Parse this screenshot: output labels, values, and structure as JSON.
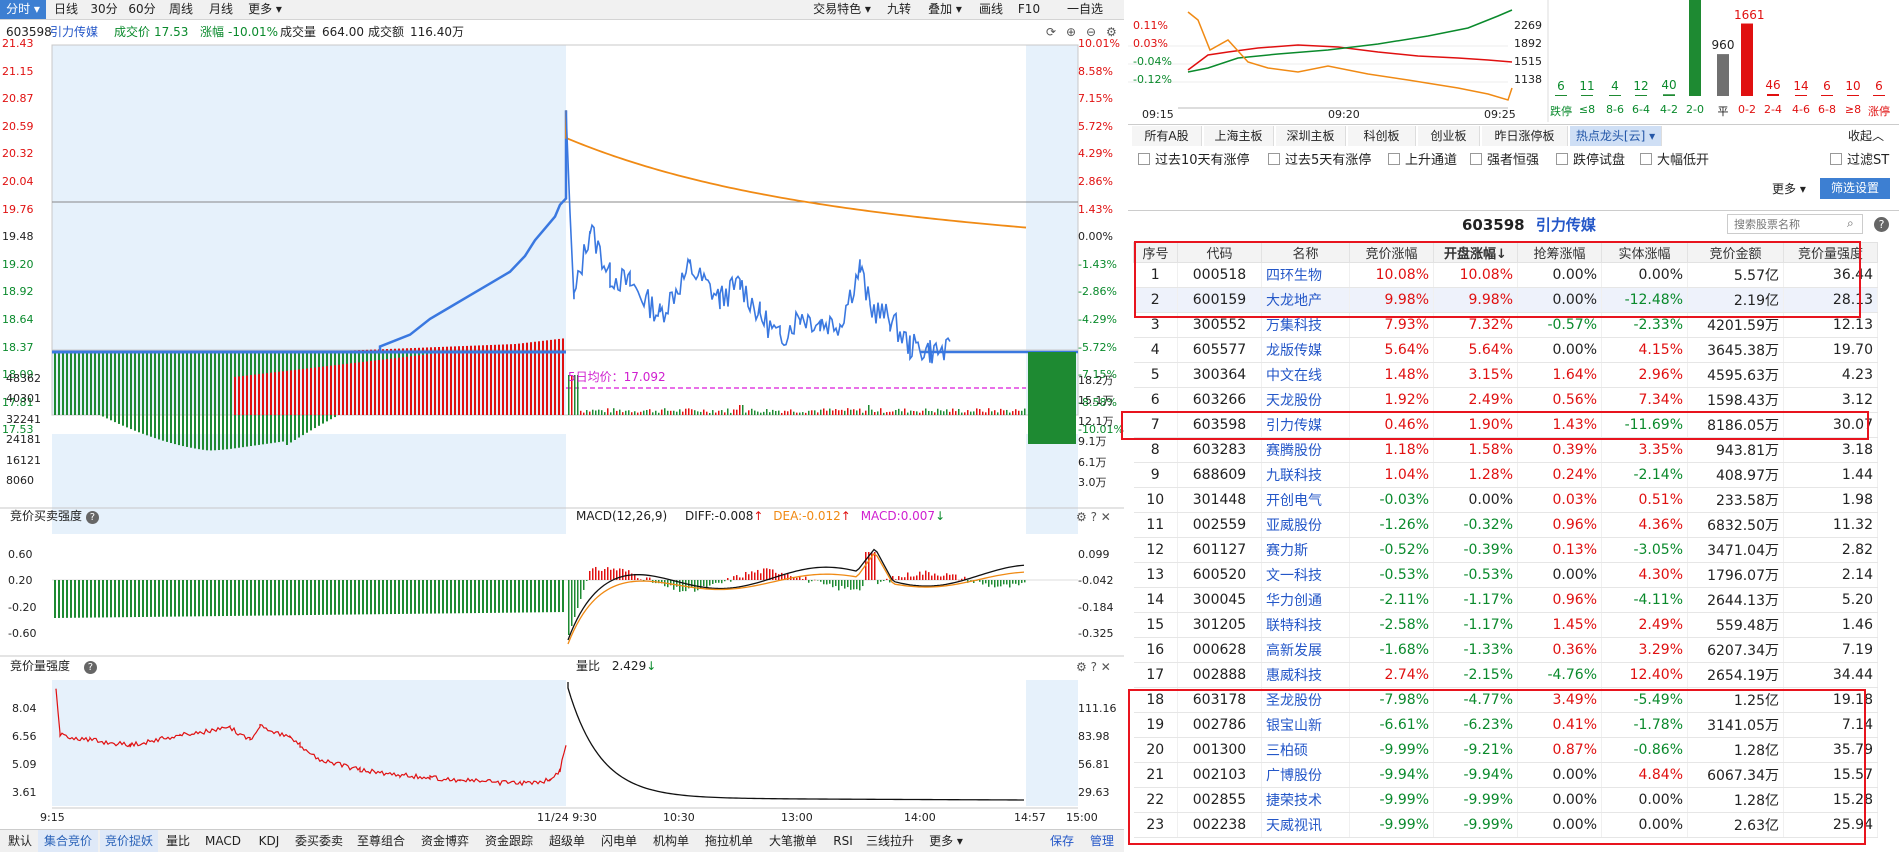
{
  "toolbar": {
    "tabs": [
      "分时",
      "日线",
      "30分",
      "60分",
      "周线",
      "月线",
      "更多"
    ],
    "right_items": [
      "交易特色",
      "九转",
      "叠加",
      "画线",
      "F10",
      "一自选"
    ]
  },
  "quote": {
    "code": "603598",
    "name": "引力传媒",
    "price_label": "成交价",
    "price": "17.53",
    "change_label": "涨幅",
    "change": "-10.01%",
    "volume_label": "成交量",
    "volume": "664.00",
    "amount_label": "成交额",
    "amount": "116.40万"
  },
  "main_chart": {
    "left_ticks": [
      "21.43",
      "21.15",
      "20.87",
      "20.59",
      "20.32",
      "20.04",
      "19.76",
      "19.48",
      "19.20",
      "18.92",
      "18.64",
      "18.37",
      "18.09",
      "17.81",
      "17.53"
    ],
    "right_ticks": [
      "10.01%",
      "8.58%",
      "7.15%",
      "5.72%",
      "4.29%",
      "2.86%",
      "1.43%",
      "0.00%",
      "-1.43%",
      "-2.86%",
      "-4.29%",
      "-5.72%",
      "-7.15%",
      "-8.58%",
      "-10.01%"
    ],
    "ma5_label": "5日均价：17.092",
    "vol_left_ticks": [
      "48362",
      "40301",
      "32241",
      "24181",
      "16121",
      "8060"
    ],
    "vol_right_ticks": [
      "18.2万",
      "15.1万",
      "12.1万",
      "9.1万",
      "6.1万",
      "3.0万"
    ]
  },
  "panel2": {
    "title": "竞价买卖强度",
    "macd_label": "MACD(12,26,9)",
    "diff": "DIFF:-0.008",
    "dea": "DEA:-0.012",
    "macd": "MACD:0.007",
    "left_ticks": [
      "0.60",
      "0.20",
      "-0.20",
      "-0.60"
    ],
    "right_ticks": [
      "0.099",
      "-0.042",
      "-0.184",
      "-0.325"
    ]
  },
  "panel3": {
    "title": "竞价量强度",
    "ratio_label": "量比",
    "ratio": "2.429",
    "left_ticks": [
      "8.04",
      "6.56",
      "5.09",
      "3.61"
    ],
    "right_ticks": [
      "111.16",
      "83.98",
      "56.81",
      "29.63"
    ]
  },
  "time_axis": [
    "9:15",
    "11/24 9:30",
    "10:30",
    "13:00",
    "14:00",
    "14:57",
    "15:00"
  ],
  "bottom_tabs": [
    "默认",
    "集合竞价",
    "竞价捉妖",
    "量比",
    "MACD",
    "KDJ",
    "委买委卖",
    "至尊组合",
    "资金博弈",
    "资金跟踪",
    "超级单",
    "闪电单",
    "机构单",
    "拖拉机单",
    "大笔撤单",
    "RSI",
    "三线拉升",
    "更多"
  ],
  "bottom_right": [
    "保存",
    "管理"
  ],
  "mini_chart": {
    "left_ticks": [
      "0.11%",
      "0.03%",
      "-0.04%",
      "-0.12%"
    ],
    "right_ticks": [
      "2269",
      "1892",
      "1515",
      "1138"
    ],
    "x_ticks": [
      "09:15",
      "09:20",
      "09:25"
    ]
  },
  "distribution": {
    "counts": [
      "6",
      "11",
      "4",
      "12",
      "40",
      "",
      "960",
      "1661",
      "46",
      "14",
      "6",
      "10",
      "6"
    ],
    "labels": [
      "跌停",
      "≤8",
      "8-6",
      "6-4",
      "4-2",
      "2-0",
      "平",
      "0-2",
      "2-4",
      "4-6",
      "6-8",
      "≥8",
      "涨停"
    ],
    "values": [
      6,
      11,
      4,
      12,
      40,
      2200,
      960,
      1661,
      46,
      14,
      6,
      10,
      6
    ]
  },
  "right_tabs": [
    "所有A股",
    "上海主板",
    "深圳主板",
    "科创板",
    "创业板",
    "昨日涨停板",
    "热点龙头[云]"
  ],
  "collapse_label": "收起",
  "filters": [
    "过去10天有涨停",
    "过去5天有涨停",
    "上升通道",
    "强者恒强",
    "跌停试盘",
    "大幅低开"
  ],
  "filter_right": "过滤ST",
  "more_label": "更多",
  "screen_button": "筛选设置",
  "stock_title": {
    "code": "603598",
    "name": "引力传媒"
  },
  "search_placeholder": "搜索股票名称",
  "table": {
    "headers": [
      "序号",
      "代码",
      "名称",
      "竞价涨幅",
      "开盘涨幅↓",
      "抢筹涨幅",
      "实体涨幅",
      "竞价金额",
      "竞价量强度"
    ],
    "rows": [
      [
        "1",
        "000518",
        "四环生物",
        "10.08%",
        "10.08%",
        "0.00%",
        "0.00%",
        "5.57亿",
        "36.44"
      ],
      [
        "2",
        "600159",
        "大龙地产",
        "9.98%",
        "9.98%",
        "0.00%",
        "-12.48%",
        "2.19亿",
        "28.13"
      ],
      [
        "3",
        "300552",
        "万集科技",
        "7.93%",
        "7.32%",
        "-0.57%",
        "-2.33%",
        "4201.59万",
        "12.13"
      ],
      [
        "4",
        "605577",
        "龙版传媒",
        "5.64%",
        "5.64%",
        "0.00%",
        "4.15%",
        "3645.38万",
        "19.70"
      ],
      [
        "5",
        "300364",
        "中文在线",
        "1.48%",
        "3.15%",
        "1.64%",
        "2.96%",
        "4595.63万",
        "4.23"
      ],
      [
        "6",
        "603266",
        "天龙股份",
        "1.92%",
        "2.49%",
        "0.56%",
        "7.34%",
        "1598.43万",
        "3.12"
      ],
      [
        "7",
        "603598",
        "引力传媒",
        "0.46%",
        "1.90%",
        "1.43%",
        "-11.69%",
        "8186.05万",
        "30.07"
      ],
      [
        "8",
        "603283",
        "赛腾股份",
        "1.18%",
        "1.58%",
        "0.39%",
        "3.35%",
        "943.81万",
        "3.18"
      ],
      [
        "9",
        "688609",
        "九联科技",
        "1.04%",
        "1.28%",
        "0.24%",
        "-2.14%",
        "408.97万",
        "1.44"
      ],
      [
        "10",
        "301448",
        "开创电气",
        "-0.03%",
        "0.00%",
        "0.03%",
        "0.51%",
        "233.58万",
        "1.98"
      ],
      [
        "11",
        "002559",
        "亚威股份",
        "-1.26%",
        "-0.32%",
        "0.96%",
        "4.36%",
        "6832.50万",
        "11.32"
      ],
      [
        "12",
        "601127",
        "赛力斯",
        "-0.52%",
        "-0.39%",
        "0.13%",
        "-3.05%",
        "3471.04万",
        "2.82"
      ],
      [
        "13",
        "600520",
        "文一科技",
        "-0.53%",
        "-0.53%",
        "0.00%",
        "4.30%",
        "1796.07万",
        "2.14"
      ],
      [
        "14",
        "300045",
        "华力创通",
        "-2.11%",
        "-1.17%",
        "0.96%",
        "-4.11%",
        "2644.13万",
        "5.20"
      ],
      [
        "15",
        "301205",
        "联特科技",
        "-2.58%",
        "-1.17%",
        "1.45%",
        "2.49%",
        "559.48万",
        "1.46"
      ],
      [
        "16",
        "000628",
        "高新发展",
        "-1.68%",
        "-1.33%",
        "0.36%",
        "3.29%",
        "6207.34万",
        "7.19"
      ],
      [
        "17",
        "002888",
        "惠威科技",
        "2.74%",
        "-2.15%",
        "-4.76%",
        "12.40%",
        "2654.19万",
        "34.44"
      ],
      [
        "18",
        "603178",
        "圣龙股份",
        "-7.98%",
        "-4.77%",
        "3.49%",
        "-5.49%",
        "1.25亿",
        "19.18"
      ],
      [
        "19",
        "002786",
        "银宝山新",
        "-6.61%",
        "-6.23%",
        "0.41%",
        "-1.78%",
        "3141.05万",
        "7.14"
      ],
      [
        "20",
        "001300",
        "三柏硕",
        "-9.99%",
        "-9.21%",
        "0.87%",
        "-0.86%",
        "1.28亿",
        "35.79"
      ],
      [
        "21",
        "002103",
        "广博股份",
        "-9.94%",
        "-9.94%",
        "0.00%",
        "4.84%",
        "6067.34万",
        "15.57"
      ],
      [
        "22",
        "002855",
        "捷荣技术",
        "-9.99%",
        "-9.99%",
        "0.00%",
        "0.00%",
        "1.28亿",
        "15.28"
      ],
      [
        "23",
        "002238",
        "天威视讯",
        "-9.99%",
        "-9.99%",
        "0.00%",
        "0.00%",
        "2.63亿",
        "25.94"
      ]
    ]
  },
  "colors": {
    "up": "#e01010",
    "down": "#0a8a2c",
    "accent": "#3d7fd2",
    "price_line": "#3a78e0",
    "avg_line": "#f08a14",
    "box": "#e8141e"
  }
}
